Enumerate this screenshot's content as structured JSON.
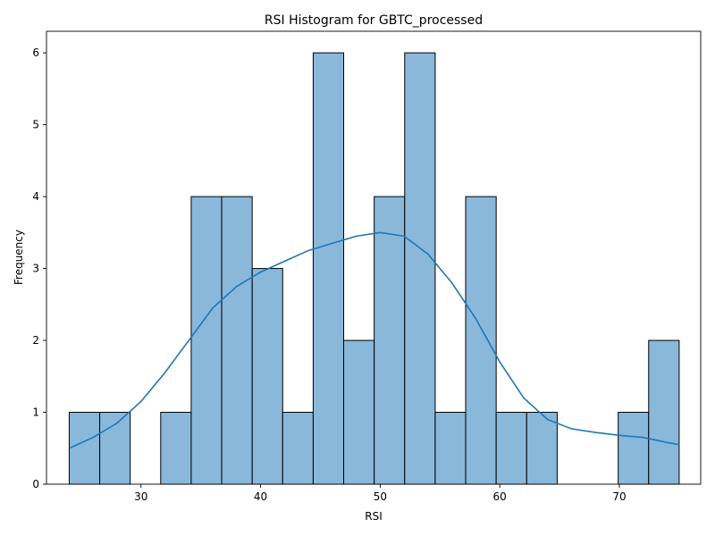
{
  "chart_data": {
    "type": "bar",
    "title": "RSI Histogram for GBTC_processed",
    "xlabel": "RSI",
    "ylabel": "Frequency",
    "xlim": [
      22.1,
      76.8
    ],
    "ylim": [
      0,
      6.3
    ],
    "x_ticks": [
      30,
      40,
      50,
      60,
      70
    ],
    "y_ticks": [
      0,
      1,
      2,
      3,
      4,
      5,
      6
    ],
    "grid": false,
    "bin_edges": [
      24.0,
      26.55,
      29.1,
      31.65,
      34.2,
      36.75,
      39.3,
      41.85,
      44.4,
      46.95,
      49.5,
      52.05,
      54.6,
      57.15,
      59.7,
      62.25,
      64.8,
      67.35,
      69.9,
      72.45,
      75.0
    ],
    "values": [
      1,
      1,
      0,
      1,
      4,
      4,
      3,
      1,
      6,
      2,
      4,
      6,
      1,
      4,
      1,
      1,
      0,
      0,
      1,
      2
    ],
    "kde": {
      "x": [
        24,
        26,
        28,
        30,
        32,
        34,
        36,
        38,
        40,
        42,
        44,
        46,
        48,
        50,
        52,
        54,
        56,
        58,
        60,
        62,
        64,
        66,
        68,
        70,
        72,
        74,
        75
      ],
      "y": [
        0.5,
        0.65,
        0.85,
        1.15,
        1.55,
        2.0,
        2.45,
        2.75,
        2.95,
        3.1,
        3.25,
        3.35,
        3.45,
        3.5,
        3.45,
        3.2,
        2.8,
        2.3,
        1.7,
        1.2,
        0.9,
        0.77,
        0.72,
        0.68,
        0.65,
        0.58,
        0.55
      ]
    }
  }
}
